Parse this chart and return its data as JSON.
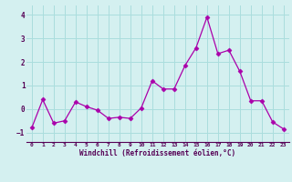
{
  "x": [
    0,
    1,
    2,
    3,
    4,
    5,
    6,
    7,
    8,
    9,
    10,
    11,
    12,
    13,
    14,
    15,
    16,
    17,
    18,
    19,
    20,
    21,
    22,
    23
  ],
  "y": [
    -0.8,
    0.4,
    -0.6,
    -0.5,
    0.3,
    0.1,
    -0.05,
    -0.4,
    -0.35,
    -0.4,
    0.05,
    1.2,
    0.85,
    0.85,
    1.85,
    2.6,
    3.9,
    2.35,
    2.5,
    1.6,
    0.35,
    0.35,
    -0.55,
    -0.85
  ],
  "line_color": "#aa00aa",
  "marker": "D",
  "marker_size": 2.5,
  "bg_color": "#d4f0f0",
  "grid_color": "#aadddd",
  "xlabel": "Windchill (Refroidissement éolien,°C)",
  "xlabel_color": "#550055",
  "tick_color": "#550055",
  "ylim": [
    -1.4,
    4.4
  ],
  "yticks": [
    -1,
    0,
    1,
    2,
    3,
    4
  ],
  "xlim": [
    -0.5,
    23.5
  ],
  "xticks": [
    0,
    1,
    2,
    3,
    4,
    5,
    6,
    7,
    8,
    9,
    10,
    11,
    12,
    13,
    14,
    15,
    16,
    17,
    18,
    19,
    20,
    21,
    22,
    23
  ]
}
